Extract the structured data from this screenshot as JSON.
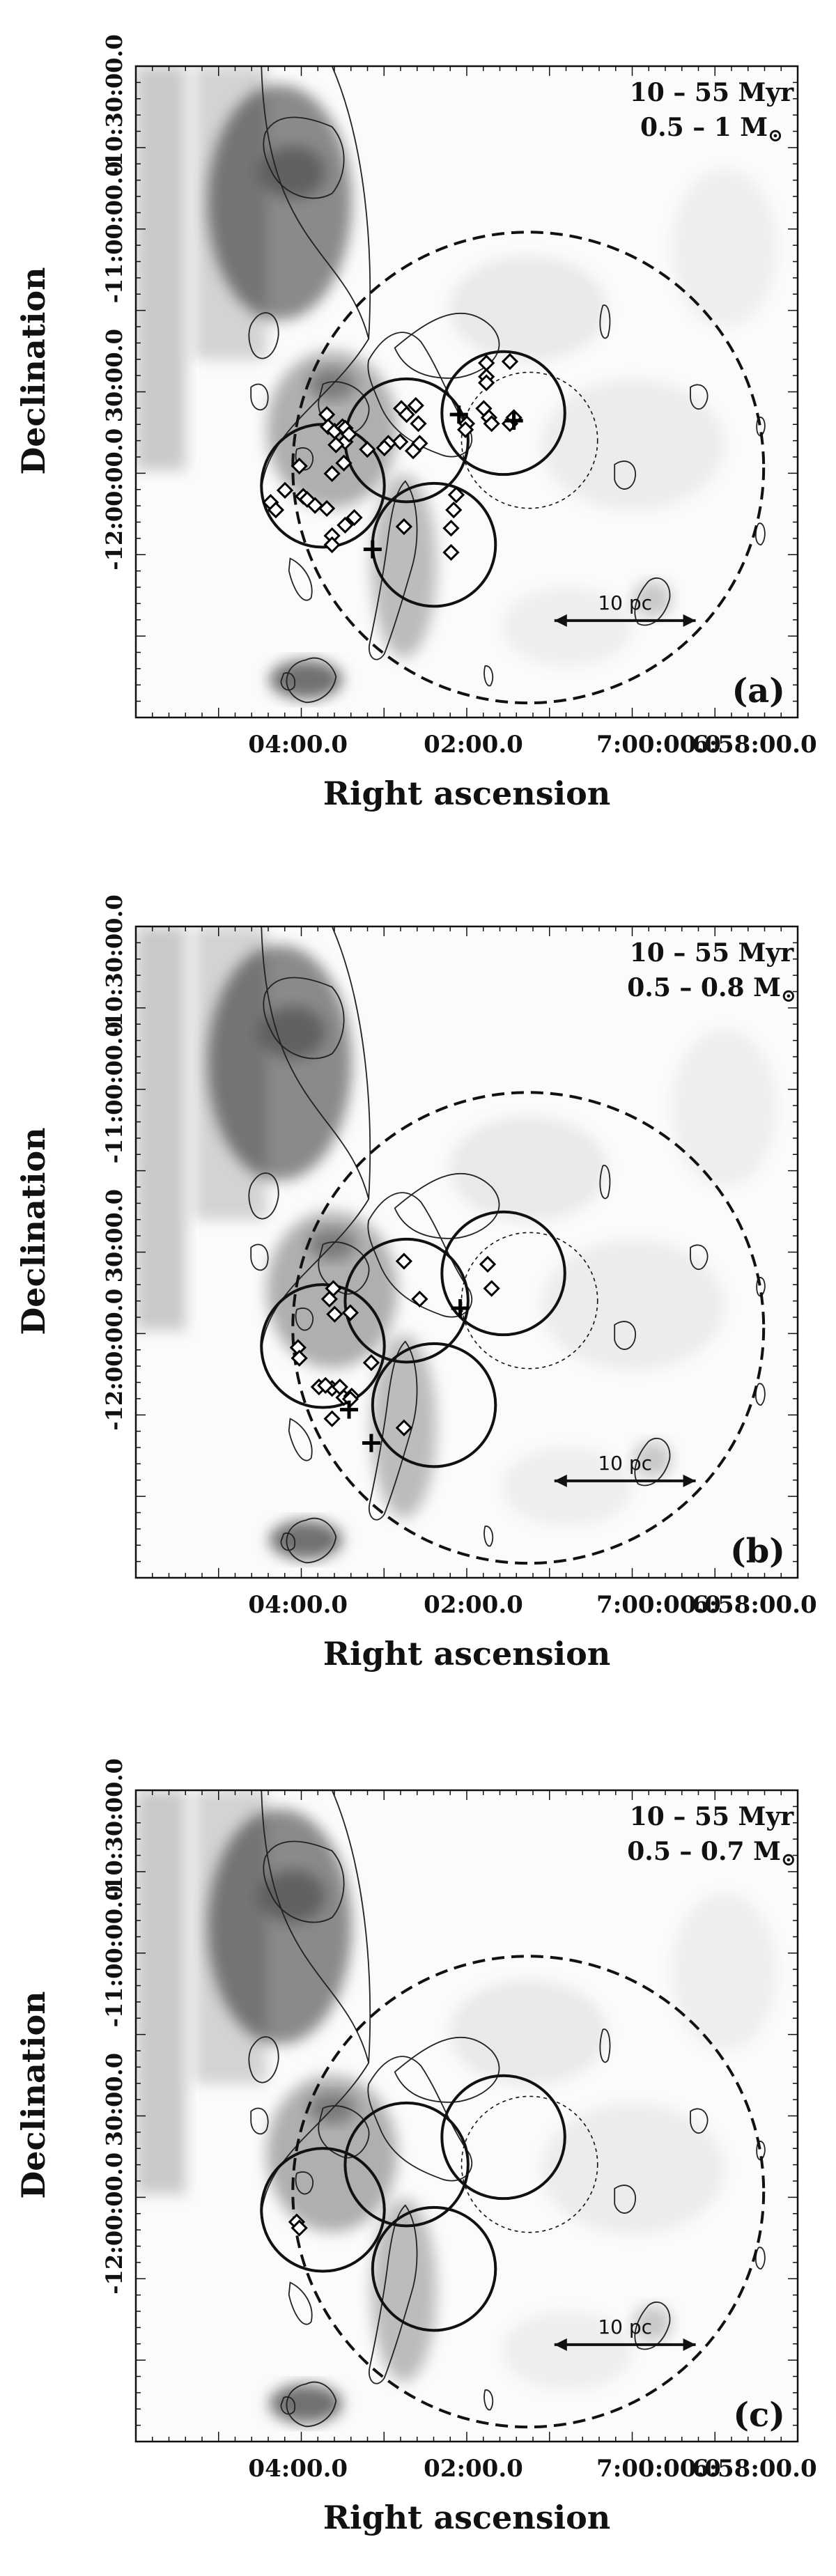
{
  "chart_data": [
    {
      "type": "scatter",
      "panel_label": "(a)",
      "annotation_line1": "10 – 55 Myr",
      "annotation_line2_prefix": "0.5 – 1 M",
      "annotation_line2_symbol": "⊙",
      "xlabel": "Right ascension",
      "ylabel": "Declination",
      "x_ticks": [
        "04:00.0",
        "02:00.0",
        "7:00:00.0",
        "6:58:00.0"
      ],
      "y_ticks": [
        "-10:30:00.0",
        "-11:00:00.0",
        "30:00.0",
        "-12:00:00.0"
      ],
      "scale_bar_label": "10 pc",
      "marker_count": 48
    },
    {
      "type": "scatter",
      "panel_label": "(b)",
      "annotation_line1": "10 – 55 Myr",
      "annotation_line2_prefix": "0.5 – 0.8 M",
      "annotation_line2_symbol": "⊙",
      "xlabel": "Right ascension",
      "ylabel": "Declination",
      "x_ticks": [
        "04:00.0",
        "02:00.0",
        "7:00:00.0",
        "6:58:00.0"
      ],
      "y_ticks": [
        "-10:30:00.0",
        "-11:00:00.0",
        "30:00.0",
        "-12:00:00.0"
      ],
      "scale_bar_label": "10 pc",
      "marker_count": 20
    },
    {
      "type": "scatter",
      "panel_label": "(c)",
      "annotation_line1": "10 – 55 Myr",
      "annotation_line2_prefix": "0.5 – 0.7 M",
      "annotation_line2_symbol": "⊙",
      "xlabel": "Right ascension",
      "ylabel": "Declination",
      "x_ticks": [
        "04:00.0",
        "02:00.0",
        "7:00:00.0",
        "6:58:00.0"
      ],
      "y_ticks": [
        "-10:30:00.0",
        "-11:00:00.0",
        "30:00.0",
        "-12:00:00.0"
      ],
      "scale_bar_label": "10 pc",
      "marker_count": 2
    }
  ]
}
